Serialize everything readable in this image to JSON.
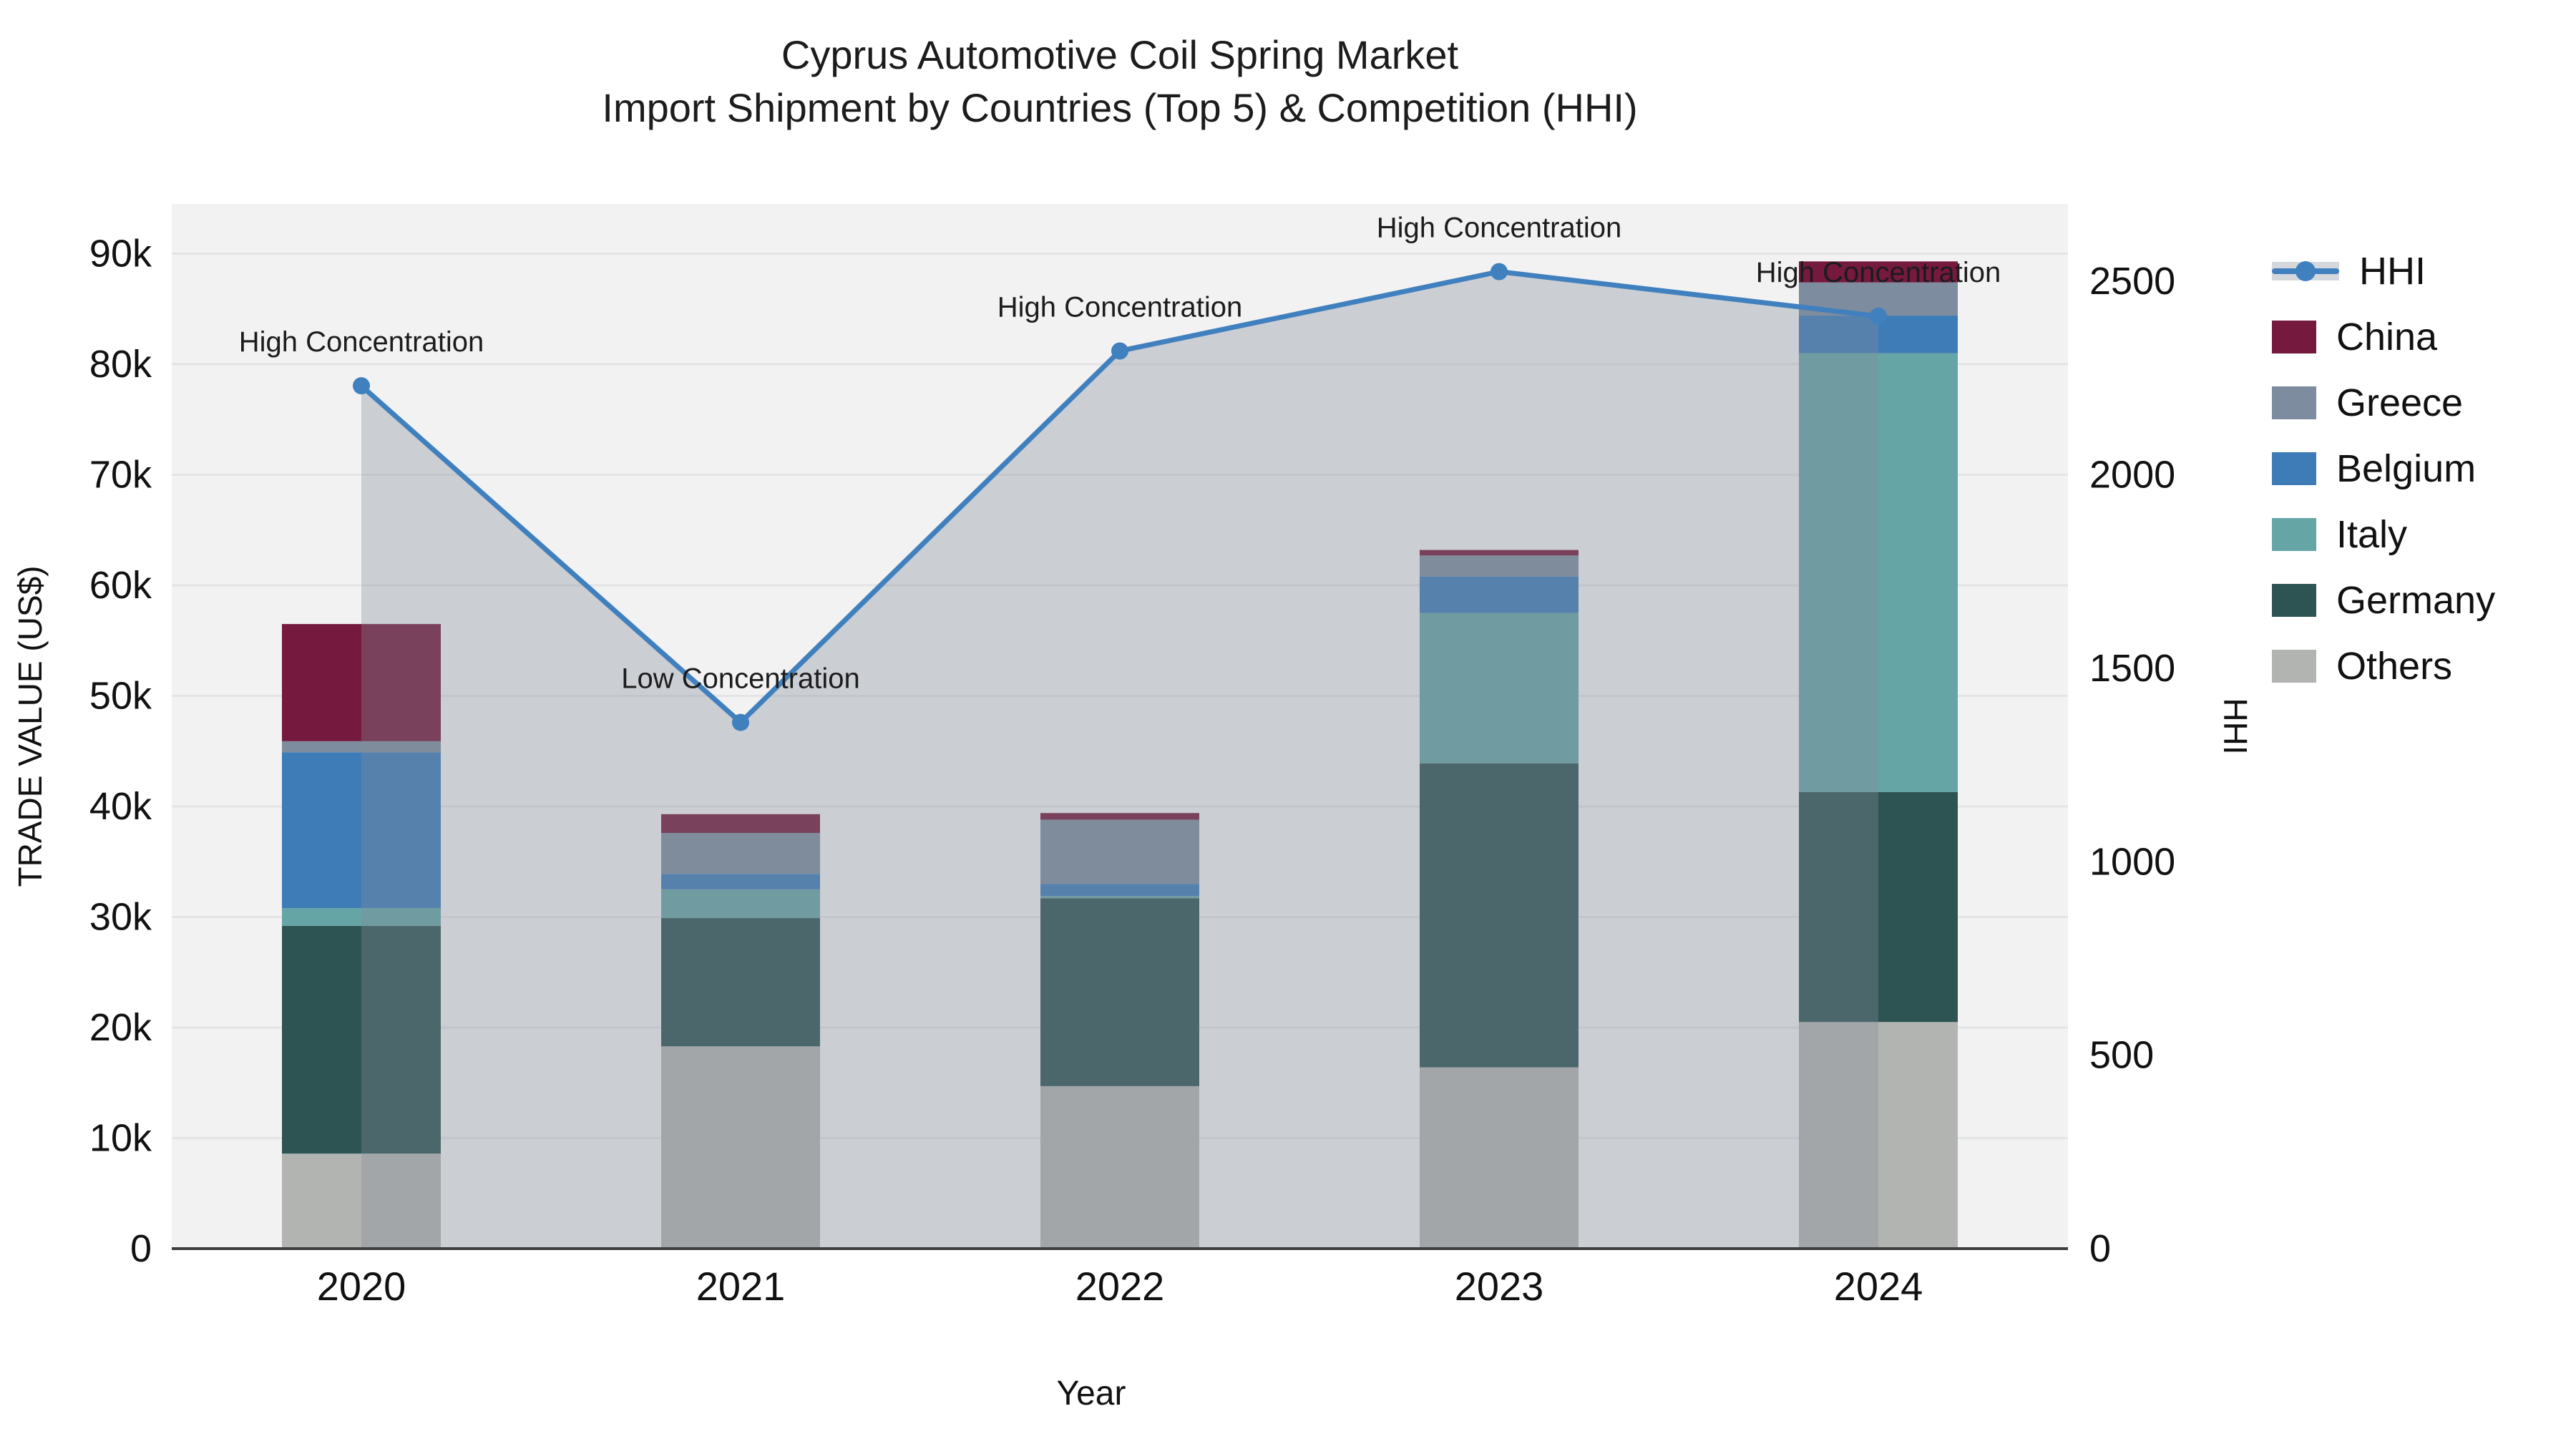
{
  "title": {
    "line1": "Cyprus Automotive Coil Spring Market",
    "line2": "Import Shipment by Countries (Top 5) & Competition (HHI)"
  },
  "chart_data": {
    "type": "combo-stacked-bar-line",
    "x": [
      "2020",
      "2021",
      "2022",
      "2023",
      "2024"
    ],
    "stack_order_bottom_to_top": [
      "Others",
      "Germany",
      "Italy",
      "Belgium",
      "Greece",
      "China"
    ],
    "series": [
      {
        "name": "China",
        "color": "#75193E",
        "values": [
          10600,
          1700,
          600,
          500,
          1900
        ]
      },
      {
        "name": "Greece",
        "color": "#7D8C9E",
        "values": [
          1000,
          3700,
          5800,
          1900,
          3000
        ]
      },
      {
        "name": "Belgium",
        "color": "#3E7CB8",
        "values": [
          14100,
          1400,
          1100,
          3300,
          3400
        ]
      },
      {
        "name": "Italy",
        "color": "#66A5A6",
        "values": [
          1600,
          2600,
          200,
          13600,
          39700
        ]
      },
      {
        "name": "Germany",
        "color": "#2E5353",
        "values": [
          20600,
          11600,
          17000,
          27500,
          20800
        ]
      },
      {
        "name": "Others",
        "color": "#B2B4B2",
        "values": [
          8600,
          18300,
          14700,
          16400,
          20500
        ]
      }
    ],
    "bar_totals": [
      56500,
      39300,
      39400,
      63200,
      89300
    ],
    "line": {
      "name": "HHI",
      "color": "#4080BE",
      "fill_color": "rgba(133,141,152,0.35)",
      "axis": "right",
      "values": [
        2230,
        1360,
        2320,
        2525,
        2410
      ]
    },
    "annotations": [
      {
        "x": "2020",
        "text": "High Concentration"
      },
      {
        "x": "2021",
        "text": "Low Concentration"
      },
      {
        "x": "2022",
        "text": "High Concentration"
      },
      {
        "x": "2023",
        "text": "High Concentration"
      },
      {
        "x": "2024",
        "text": "High Concentration"
      }
    ],
    "y_left": {
      "title": "TRADE VALUE (US$)",
      "tick_labels": [
        "0",
        "10k",
        "20k",
        "30k",
        "40k",
        "50k",
        "60k",
        "70k",
        "80k",
        "90k"
      ],
      "tick_values": [
        0,
        10000,
        20000,
        30000,
        40000,
        50000,
        60000,
        70000,
        80000,
        90000
      ],
      "axis_max": 94500
    },
    "y_right": {
      "title": "HHI",
      "tick_labels": [
        "0",
        "500",
        "1000",
        "1500",
        "2000",
        "2500"
      ],
      "tick_values": [
        0,
        500,
        1000,
        1500,
        2000,
        2500
      ],
      "axis_max": 2700
    },
    "x_axis": {
      "title": "Year"
    },
    "legend_order": [
      "HHI",
      "China",
      "Greece",
      "Belgium",
      "Italy",
      "Germany",
      "Others"
    ],
    "plot_background": "#f2f2f2",
    "gridline_color": "#e3e4e6",
    "axis_line_color": "#3f3f3f",
    "text_color": "#1c1c1c"
  }
}
